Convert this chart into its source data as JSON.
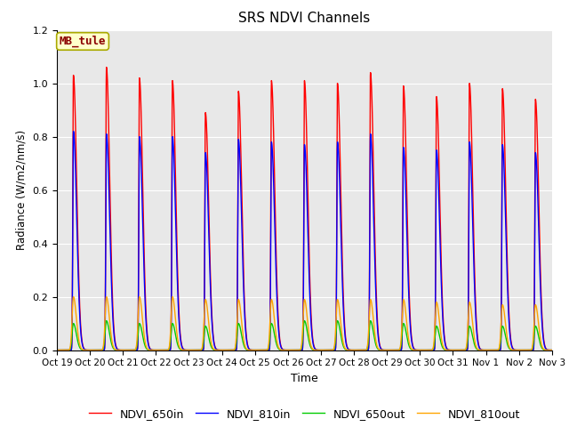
{
  "title": "SRS NDVI Channels",
  "xlabel": "Time",
  "ylabel": "Radiance (W/m2/nm/s)",
  "annotation": "MB_tule",
  "annotation_color": "#8B0000",
  "annotation_bg": "#FFFFCC",
  "ylim": [
    0.0,
    1.2
  ],
  "background_color": "#E8E8E8",
  "grid_color": "white",
  "series": {
    "NDVI_650in": {
      "color": "#FF0000",
      "lw": 1.0
    },
    "NDVI_810in": {
      "color": "#0000FF",
      "lw": 1.0
    },
    "NDVI_650out": {
      "color": "#00CC00",
      "lw": 1.0
    },
    "NDVI_810out": {
      "color": "#FFA500",
      "lw": 1.0
    }
  },
  "tick_labels": [
    "Oct 19",
    "Oct 20",
    "Oct 21",
    "Oct 22",
    "Oct 23",
    "Oct 24",
    "Oct 25",
    "Oct 26",
    "Oct 27",
    "Oct 28",
    "Oct 29",
    "Oct 30",
    "Oct 31",
    "Nov 1",
    "Nov 2",
    "Nov 3"
  ],
  "num_days": 15,
  "peak_650in": [
    1.03,
    1.06,
    1.02,
    1.01,
    0.89,
    0.97,
    1.01,
    1.01,
    1.0,
    1.04,
    0.99,
    0.95,
    1.0,
    0.98,
    0.94
  ],
  "peak_810in": [
    0.82,
    0.81,
    0.8,
    0.8,
    0.74,
    0.79,
    0.78,
    0.77,
    0.78,
    0.81,
    0.76,
    0.75,
    0.78,
    0.77,
    0.74
  ],
  "peak_650out": [
    0.1,
    0.11,
    0.1,
    0.1,
    0.09,
    0.1,
    0.1,
    0.11,
    0.11,
    0.11,
    0.1,
    0.09,
    0.09,
    0.09,
    0.09
  ],
  "peak_810out": [
    0.2,
    0.2,
    0.2,
    0.2,
    0.19,
    0.19,
    0.19,
    0.19,
    0.19,
    0.19,
    0.19,
    0.18,
    0.18,
    0.17,
    0.17
  ],
  "sigma_in_rise": 0.018,
  "sigma_in_fall": 0.1,
  "sigma_out_rise": 0.04,
  "sigma_out_fall": 0.09,
  "figsize": [
    6.4,
    4.8
  ],
  "dpi": 100
}
